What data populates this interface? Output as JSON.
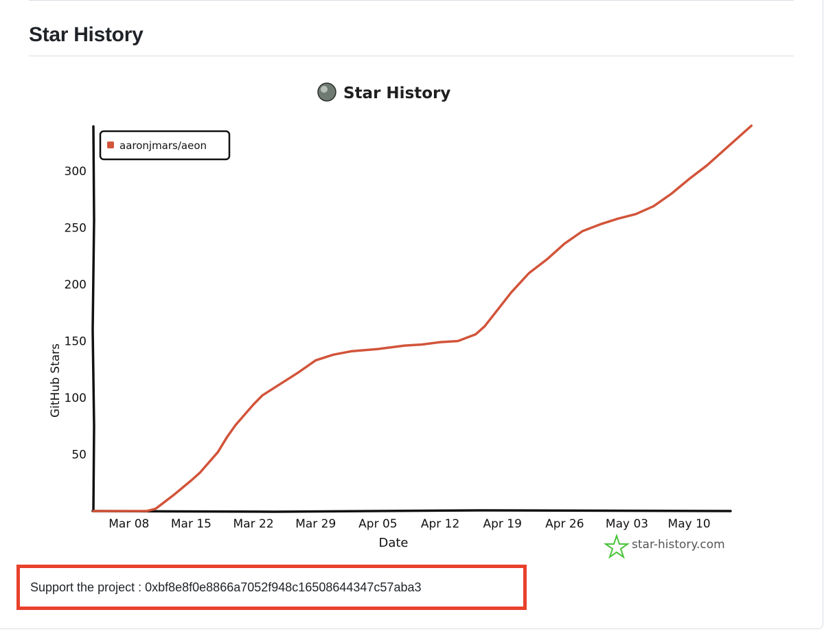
{
  "section": {
    "title": "Star History"
  },
  "chart_data": {
    "type": "line",
    "title": "Star History",
    "xlabel": "Date",
    "ylabel": "GitHub Stars",
    "x_ticks": [
      "Mar 08",
      "Mar 15",
      "Mar 22",
      "Mar 29",
      "Apr 05",
      "Apr 12",
      "Apr 19",
      "Apr 26",
      "May 03",
      "May 10"
    ],
    "y_ticks": [
      50,
      100,
      150,
      200,
      250,
      300
    ],
    "ylim": [
      0,
      340
    ],
    "legend": {
      "position": "top-left",
      "entries": [
        "aaronjmars/aeon"
      ]
    },
    "watermark": "star-history.com",
    "series": [
      {
        "name": "aaronjmars/aeon",
        "color": "#d2543a",
        "points": [
          [
            "2025-03-04",
            0
          ],
          [
            "2025-03-06",
            0
          ],
          [
            "2025-03-08",
            0
          ],
          [
            "2025-03-10",
            0
          ],
          [
            "2025-03-11",
            2
          ],
          [
            "2025-03-12",
            8
          ],
          [
            "2025-03-13",
            14
          ],
          [
            "2025-03-15",
            27
          ],
          [
            "2025-03-16",
            34
          ],
          [
            "2025-03-18",
            52
          ],
          [
            "2025-03-19",
            65
          ],
          [
            "2025-03-20",
            76
          ],
          [
            "2025-03-22",
            94
          ],
          [
            "2025-03-23",
            102
          ],
          [
            "2025-03-25",
            112
          ],
          [
            "2025-03-27",
            122
          ],
          [
            "2025-03-29",
            133
          ],
          [
            "2025-03-31",
            138
          ],
          [
            "2025-04-02",
            141
          ],
          [
            "2025-04-05",
            143
          ],
          [
            "2025-04-08",
            146
          ],
          [
            "2025-04-10",
            147
          ],
          [
            "2025-04-12",
            149
          ],
          [
            "2025-04-14",
            150
          ],
          [
            "2025-04-16",
            156
          ],
          [
            "2025-04-17",
            163
          ],
          [
            "2025-04-19",
            183
          ],
          [
            "2025-04-20",
            193
          ],
          [
            "2025-04-22",
            210
          ],
          [
            "2025-04-24",
            222
          ],
          [
            "2025-04-26",
            236
          ],
          [
            "2025-04-28",
            247
          ],
          [
            "2025-04-30",
            253
          ],
          [
            "2025-05-02",
            258
          ],
          [
            "2025-05-04",
            262
          ],
          [
            "2025-05-06",
            269
          ],
          [
            "2025-05-08",
            280
          ],
          [
            "2025-05-10",
            293
          ],
          [
            "2025-05-12",
            305
          ],
          [
            "2025-05-15",
            326
          ],
          [
            "2025-05-17",
            340
          ]
        ]
      }
    ]
  },
  "support": {
    "text": "Support the project : 0xbf8e8f0e8866a7052f948c16508644347c57aba3"
  }
}
